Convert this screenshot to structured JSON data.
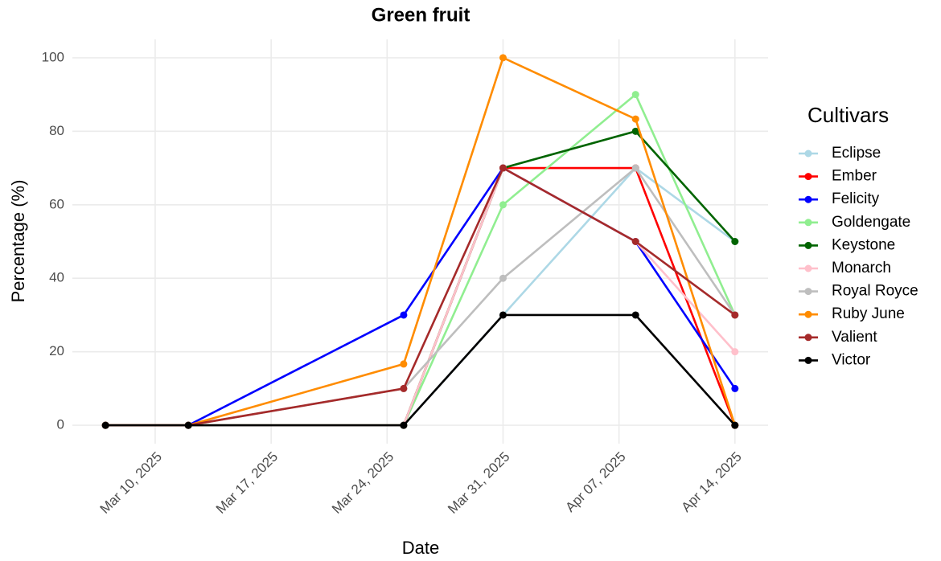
{
  "chart_data": {
    "type": "line",
    "title": "Green fruit",
    "x_label": "Date",
    "y_label": "Percentage (%)",
    "legend_title": "Cultivars",
    "legend_position": "right",
    "grid": true,
    "x": [
      "2025-03-07",
      "2025-03-12",
      "2025-03-25",
      "2025-03-31",
      "2025-04-08",
      "2025-04-14"
    ],
    "xlim": [
      "2025-03-05",
      "2025-04-16"
    ],
    "xticks": [
      {
        "value": "2025-03-10",
        "label": "Mar 10, 2025"
      },
      {
        "value": "2025-03-17",
        "label": "Mar 17, 2025"
      },
      {
        "value": "2025-03-24",
        "label": "Mar 24, 2025"
      },
      {
        "value": "2025-03-31",
        "label": "Mar 31, 2025"
      },
      {
        "value": "2025-04-07",
        "label": "Apr 07, 2025"
      },
      {
        "value": "2025-04-14",
        "label": "Apr 14, 2025"
      }
    ],
    "ylim": [
      -5,
      105
    ],
    "yticks": [
      0,
      20,
      40,
      60,
      80,
      100
    ],
    "series": [
      {
        "name": "Eclipse",
        "color": "#add8e6",
        "values": [
          0,
          0,
          0,
          30,
          70,
          50
        ]
      },
      {
        "name": "Ember",
        "color": "#ff0000",
        "values": [
          0,
          0,
          0,
          70,
          70,
          0
        ]
      },
      {
        "name": "Felicity",
        "color": "#0000ff",
        "values": [
          0,
          0,
          30,
          70,
          50,
          10
        ]
      },
      {
        "name": "Goldengate",
        "color": "#90ee90",
        "values": [
          0,
          0,
          0,
          60,
          90,
          30
        ]
      },
      {
        "name": "Keystone",
        "color": "#006400",
        "values": [
          0,
          0,
          0,
          70,
          80,
          50
        ]
      },
      {
        "name": "Monarch",
        "color": "#ffc0cb",
        "values": [
          0,
          0,
          0,
          70,
          50,
          20
        ]
      },
      {
        "name": "Royal Royce",
        "color": "#bebebe",
        "values": [
          0,
          0,
          10,
          40,
          70,
          30
        ]
      },
      {
        "name": "Ruby June",
        "color": "#ff8c00",
        "values": [
          0,
          0,
          16.67,
          100,
          83.33,
          0
        ]
      },
      {
        "name": "Valient",
        "color": "#a52a2a",
        "values": [
          0,
          0,
          10,
          70,
          50,
          30
        ]
      },
      {
        "name": "Victor",
        "color": "#000000",
        "values": [
          0,
          0,
          0,
          30,
          30,
          0
        ]
      }
    ]
  }
}
